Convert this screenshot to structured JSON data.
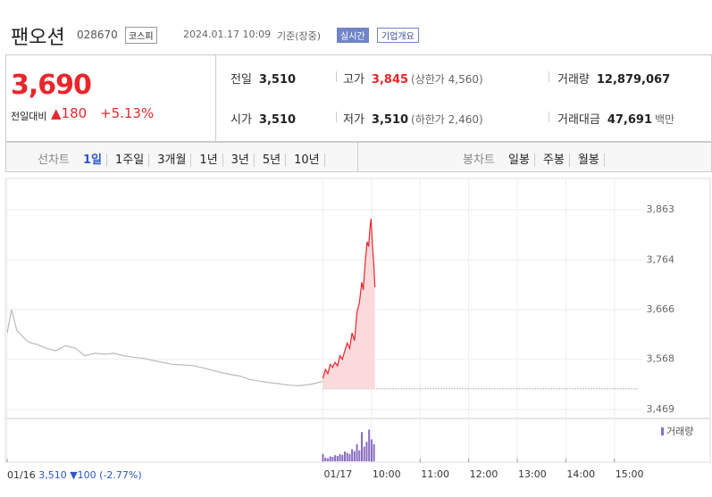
{
  "header": {
    "name": "팬오션",
    "code": "028670",
    "market": "코스피",
    "datetime": "2024.01.17 10:09",
    "basis": "기준(장중)",
    "realtime": "실시간",
    "company": "기업개요"
  },
  "summary": {
    "price": "3,690",
    "change_label": "전일대비",
    "change": "▲180",
    "change_pct": "+5.13%",
    "rows": [
      [
        [
          "전일",
          "3,510",
          null
        ],
        [
          "고가",
          "3,845",
          "(상한가 4,560)"
        ],
        [
          "거래량",
          "12,879,067",
          null
        ]
      ],
      [
        [
          "시가",
          "3,510",
          null
        ],
        [
          "저가",
          "3,510",
          "(하한가 2,460)"
        ],
        [
          "거래대금",
          "47,691",
          "백만"
        ]
      ]
    ]
  },
  "tabs": {
    "line_label": "선차트",
    "line": [
      "1일",
      "1주일",
      "3개월",
      "1년",
      "3년",
      "5년",
      "10년"
    ],
    "candle_label": "봉차트",
    "candle": [
      "일봉",
      "주봉",
      "월봉"
    ]
  },
  "footer": {
    "date": "01/16",
    "close": "3,510",
    "change": "▼100",
    "pct": "(-2.77%)"
  },
  "chart_data": {
    "type": "line",
    "baseline": 3510,
    "xlim": [
      0,
      13
    ],
    "ylim": [
      3469,
      3863
    ],
    "xticks": [
      {
        "value": 0,
        "label": "01/16"
      },
      {
        "value": 6.5,
        "label": "01/17"
      },
      {
        "value": 7.5,
        "label": "10:00"
      },
      {
        "value": 8.5,
        "label": "11:00"
      },
      {
        "value": 9.5,
        "label": "12:00"
      },
      {
        "value": 10.5,
        "label": "13:00"
      },
      {
        "value": 11.5,
        "label": "14:00"
      },
      {
        "value": 12.5,
        "label": "15:00"
      }
    ],
    "yticks": [
      {
        "value": 3469,
        "label": "3,469"
      },
      {
        "value": 3568,
        "label": "3,568"
      },
      {
        "value": 3666,
        "label": "3,666"
      },
      {
        "value": 3764,
        "label": "3,764"
      },
      {
        "value": 3863,
        "label": "3,863"
      }
    ],
    "series": [
      {
        "color": "#bbbbbb",
        "x": [
          0,
          0.09,
          0.2,
          0.3,
          0.4,
          0.5,
          0.6,
          0.8,
          1.0,
          1.2,
          1.4,
          1.6,
          1.8,
          2.0,
          2.2,
          2.4,
          2.6,
          2.8,
          3.0,
          3.2,
          3.4,
          3.6,
          3.8,
          4.0,
          4.2,
          4.4,
          4.6,
          4.8,
          5.0,
          5.2,
          5.4,
          5.6,
          5.8,
          6.0,
          6.2,
          6.4,
          6.5
        ],
        "values": [
          3620,
          3666,
          3625,
          3615,
          3605,
          3600,
          3598,
          3590,
          3585,
          3595,
          3590,
          3575,
          3580,
          3578,
          3580,
          3575,
          3572,
          3570,
          3566,
          3562,
          3558,
          3557,
          3556,
          3552,
          3547,
          3542,
          3538,
          3535,
          3528,
          3525,
          3522,
          3520,
          3517,
          3516,
          3518,
          3522,
          3525
        ]
      },
      {
        "color": "#e8262c",
        "fill": "#fbdadc",
        "x": [
          6.5,
          6.55,
          6.6,
          6.65,
          6.7,
          6.75,
          6.8,
          6.85,
          6.9,
          6.95,
          7.0,
          7.05,
          7.1,
          7.15,
          7.2,
          7.25,
          7.3,
          7.33,
          7.37,
          7.41,
          7.44,
          7.47,
          7.49,
          7.52,
          7.55,
          7.57
        ],
        "values": [
          3530,
          3548,
          3540,
          3558,
          3552,
          3562,
          3555,
          3575,
          3568,
          3585,
          3600,
          3590,
          3620,
          3605,
          3660,
          3680,
          3720,
          3705,
          3760,
          3800,
          3790,
          3830,
          3845,
          3790,
          3750,
          3710
        ]
      }
    ],
    "volume": {
      "name": "거래량",
      "color": "#8a6cc1",
      "vlim": [
        0,
        1500000
      ],
      "x": [
        6.5,
        6.55,
        6.6,
        6.65,
        6.7,
        6.75,
        6.8,
        6.85,
        6.9,
        6.95,
        7.0,
        7.05,
        7.1,
        7.15,
        7.2,
        7.25,
        7.3,
        7.35,
        7.4,
        7.45,
        7.5,
        7.55
      ],
      "values": [
        300000,
        150000,
        120000,
        200000,
        180000,
        250000,
        220000,
        300000,
        260000,
        400000,
        350000,
        300000,
        500000,
        420000,
        700000,
        450000,
        1200000,
        600000,
        800000,
        1300000,
        900000,
        700000
      ]
    }
  }
}
